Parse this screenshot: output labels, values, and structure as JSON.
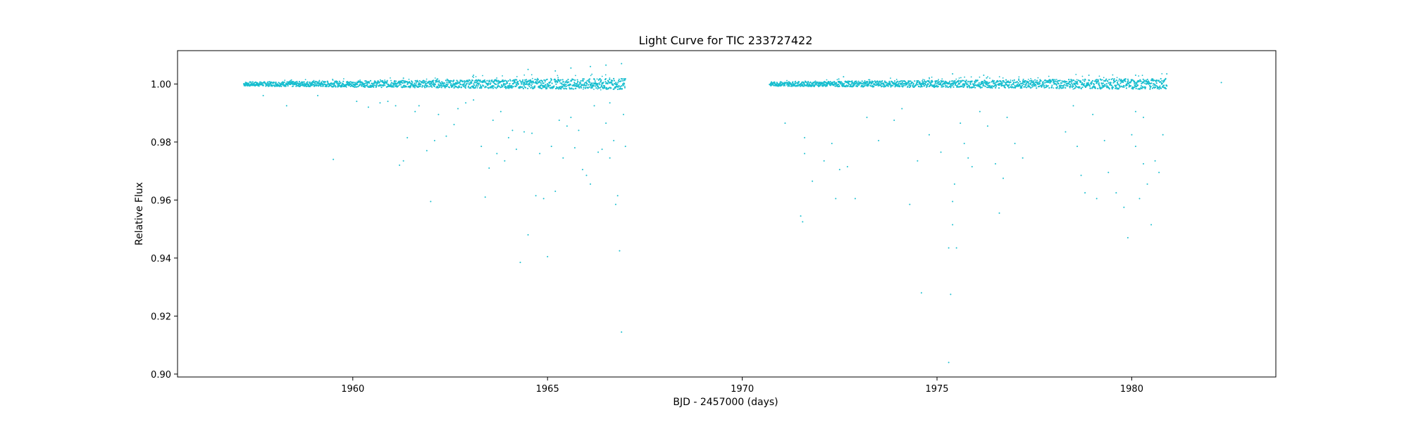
{
  "chart_data": {
    "type": "scatter",
    "title": "Light Curve for TIC 233727422",
    "xlabel": "BJD - 2457000 (days)",
    "ylabel": "Relative Flux",
    "xlim": [
      1955.5,
      1983.7
    ],
    "ylim": [
      0.899,
      1.0115
    ],
    "xticks": [
      1960,
      1965,
      1970,
      1975,
      1980
    ],
    "xtick_labels": [
      "1960",
      "1965",
      "1970",
      "1975",
      "1980"
    ],
    "yticks": [
      0.9,
      0.92,
      0.94,
      0.96,
      0.98,
      1.0
    ],
    "ytick_labels": [
      "0.90",
      "0.92",
      "0.94",
      "0.96",
      "0.98",
      "1.00"
    ],
    "grid": false,
    "marker_color": "#17becf",
    "segments": [
      {
        "x_start": 1957.2,
        "x_end": 1967.0,
        "baseline": 1.0
      },
      {
        "x_start": 1970.7,
        "x_end": 1980.9,
        "baseline": 1.0
      }
    ],
    "points": [
      [
        1957.7,
        0.996
      ],
      [
        1958.3,
        0.9925
      ],
      [
        1959.1,
        0.996
      ],
      [
        1959.5,
        0.974
      ],
      [
        1960.1,
        0.994
      ],
      [
        1960.4,
        0.992
      ],
      [
        1960.7,
        0.9935
      ],
      [
        1960.9,
        0.994
      ],
      [
        1961.1,
        0.9925
      ],
      [
        1961.2,
        0.972
      ],
      [
        1961.3,
        0.9735
      ],
      [
        1961.4,
        0.9815
      ],
      [
        1961.6,
        0.9905
      ],
      [
        1961.7,
        0.9925
      ],
      [
        1961.9,
        0.977
      ],
      [
        1962.0,
        0.9595
      ],
      [
        1962.1,
        0.9805
      ],
      [
        1962.2,
        0.9895
      ],
      [
        1962.4,
        0.982
      ],
      [
        1962.6,
        0.986
      ],
      [
        1962.7,
        0.9915
      ],
      [
        1962.9,
        0.9935
      ],
      [
        1963.1,
        0.9945
      ],
      [
        1963.3,
        0.9785
      ],
      [
        1963.4,
        0.961
      ],
      [
        1963.5,
        0.971
      ],
      [
        1963.6,
        0.9875
      ],
      [
        1963.7,
        0.976
      ],
      [
        1963.8,
        0.9905
      ],
      [
        1963.9,
        0.9735
      ],
      [
        1964.0,
        0.9815
      ],
      [
        1964.1,
        0.984
      ],
      [
        1964.2,
        0.9775
      ],
      [
        1964.3,
        0.9385
      ],
      [
        1964.4,
        0.9835
      ],
      [
        1964.5,
        0.948
      ],
      [
        1964.6,
        0.983
      ],
      [
        1964.7,
        0.9615
      ],
      [
        1964.8,
        0.976
      ],
      [
        1964.9,
        0.9605
      ],
      [
        1965.0,
        0.9405
      ],
      [
        1965.1,
        0.9785
      ],
      [
        1965.2,
        0.963
      ],
      [
        1965.3,
        0.9875
      ],
      [
        1965.4,
        0.9745
      ],
      [
        1965.5,
        0.9855
      ],
      [
        1965.6,
        0.9885
      ],
      [
        1965.7,
        0.978
      ],
      [
        1965.8,
        0.984
      ],
      [
        1965.9,
        0.9705
      ],
      [
        1966.0,
        0.9685
      ],
      [
        1966.1,
        0.9655
      ],
      [
        1966.2,
        0.9925
      ],
      [
        1966.3,
        0.9765
      ],
      [
        1966.4,
        0.9775
      ],
      [
        1966.5,
        0.9865
      ],
      [
        1966.6,
        0.9745
      ],
      [
        1966.7,
        0.9805
      ],
      [
        1966.75,
        0.9585
      ],
      [
        1966.8,
        0.9615
      ],
      [
        1966.85,
        0.9425
      ],
      [
        1966.9,
        0.9145
      ],
      [
        1966.95,
        0.9895
      ],
      [
        1967.0,
        0.9785
      ],
      [
        1966.6,
        0.9935
      ],
      [
        1971.1,
        0.9865
      ],
      [
        1971.6,
        0.9815
      ],
      [
        1971.5,
        0.9545
      ],
      [
        1971.55,
        0.9525
      ],
      [
        1971.6,
        0.976
      ],
      [
        1971.8,
        0.9665
      ],
      [
        1972.1,
        0.9735
      ],
      [
        1972.3,
        0.9795
      ],
      [
        1972.4,
        0.9605
      ],
      [
        1972.5,
        0.9705
      ],
      [
        1972.7,
        0.9715
      ],
      [
        1972.9,
        0.9605
      ],
      [
        1973.2,
        0.9885
      ],
      [
        1973.5,
        0.9805
      ],
      [
        1973.9,
        0.9875
      ],
      [
        1974.1,
        0.9915
      ],
      [
        1974.3,
        0.9585
      ],
      [
        1974.5,
        0.9735
      ],
      [
        1974.6,
        0.928
      ],
      [
        1974.8,
        0.9825
      ],
      [
        1975.1,
        0.9765
      ],
      [
        1975.3,
        0.9435
      ],
      [
        1975.35,
        0.9275
      ],
      [
        1975.4,
        0.9515
      ],
      [
        1975.45,
        0.9655
      ],
      [
        1975.5,
        0.9435
      ],
      [
        1975.6,
        0.9865
      ],
      [
        1975.7,
        0.9795
      ],
      [
        1975.8,
        0.9745
      ],
      [
        1975.9,
        0.9715
      ],
      [
        1976.1,
        0.9905
      ],
      [
        1976.3,
        0.9855
      ],
      [
        1976.5,
        0.9725
      ],
      [
        1976.6,
        0.9555
      ],
      [
        1976.8,
        0.9885
      ],
      [
        1977.0,
        0.9795
      ],
      [
        1977.2,
        0.9745
      ],
      [
        1975.3,
        0.904
      ],
      [
        1975.4,
        0.9595
      ],
      [
        1976.7,
        0.9675
      ],
      [
        1978.3,
        0.9835
      ],
      [
        1978.5,
        0.9925
      ],
      [
        1978.6,
        0.9785
      ],
      [
        1978.7,
        0.9685
      ],
      [
        1978.8,
        0.9625
      ],
      [
        1979.0,
        0.9895
      ],
      [
        1979.1,
        0.9605
      ],
      [
        1979.3,
        0.9805
      ],
      [
        1979.4,
        0.9695
      ],
      [
        1979.6,
        0.9625
      ],
      [
        1979.8,
        0.9575
      ],
      [
        1979.9,
        0.947
      ],
      [
        1980.0,
        0.9825
      ],
      [
        1980.1,
        0.9785
      ],
      [
        1980.2,
        0.9605
      ],
      [
        1980.3,
        0.9885
      ],
      [
        1980.4,
        0.9655
      ],
      [
        1980.5,
        0.9515
      ],
      [
        1980.6,
        0.9735
      ],
      [
        1980.7,
        0.9695
      ],
      [
        1980.8,
        0.9825
      ],
      [
        1980.3,
        0.9725
      ],
      [
        1980.1,
        0.9905
      ],
      [
        1982.3,
        1.0005
      ],
      [
        1964.5,
        1.005
      ],
      [
        1965.2,
        1.0045
      ],
      [
        1965.6,
        1.0055
      ],
      [
        1966.1,
        1.006
      ],
      [
        1966.5,
        1.0065
      ],
      [
        1966.9,
        1.007
      ],
      [
        1975.4,
        1.0035
      ],
      [
        1976.2,
        1.003
      ],
      [
        1978.9,
        1.003
      ],
      [
        1980.1,
        1.003
      ],
      [
        1980.9,
        1.0035
      ],
      [
        1961.3,
        1.002
      ],
      [
        1963.1,
        1.003
      ],
      [
        1972.6,
        1.0025
      ]
    ]
  }
}
